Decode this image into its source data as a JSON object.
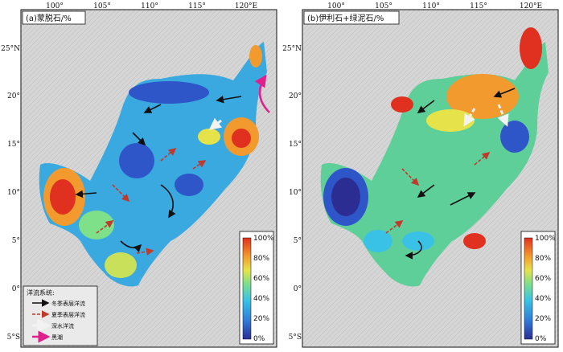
{
  "panels": [
    {
      "title": "(a)蒙脱石/%",
      "colorbar_labels": [
        "100%",
        "80%",
        "60%",
        "40%",
        "20%",
        "0%"
      ]
    },
    {
      "title": "(b)伊利石+绿泥石/%",
      "colorbar_labels": [
        "100%",
        "80%",
        "60%",
        "40%",
        "20%",
        "0%"
      ]
    }
  ],
  "axes": {
    "longitudes": [
      "100°",
      "105°",
      "110°",
      "115°",
      "120°E"
    ],
    "latitudes": [
      "25°N",
      "20°",
      "15°",
      "10°",
      "5°",
      "0°",
      "5°S"
    ]
  },
  "legend": {
    "title": "洋流系统:",
    "items": [
      "冬季表层洋流",
      "夏季表层洋流",
      "深水洋流",
      "黑潮"
    ]
  },
  "colors": {
    "colormap": [
      "#2b2d93",
      "#2f7bd6",
      "#39c2e6",
      "#7fe08a",
      "#e6e34a",
      "#f39a2e",
      "#e0301f"
    ],
    "winter_current": "#111111",
    "summer_current": "#c0392b",
    "deep_current": "#f2f2f2",
    "kuroshio": "#e0208c",
    "land": "#d9d9d9"
  }
}
